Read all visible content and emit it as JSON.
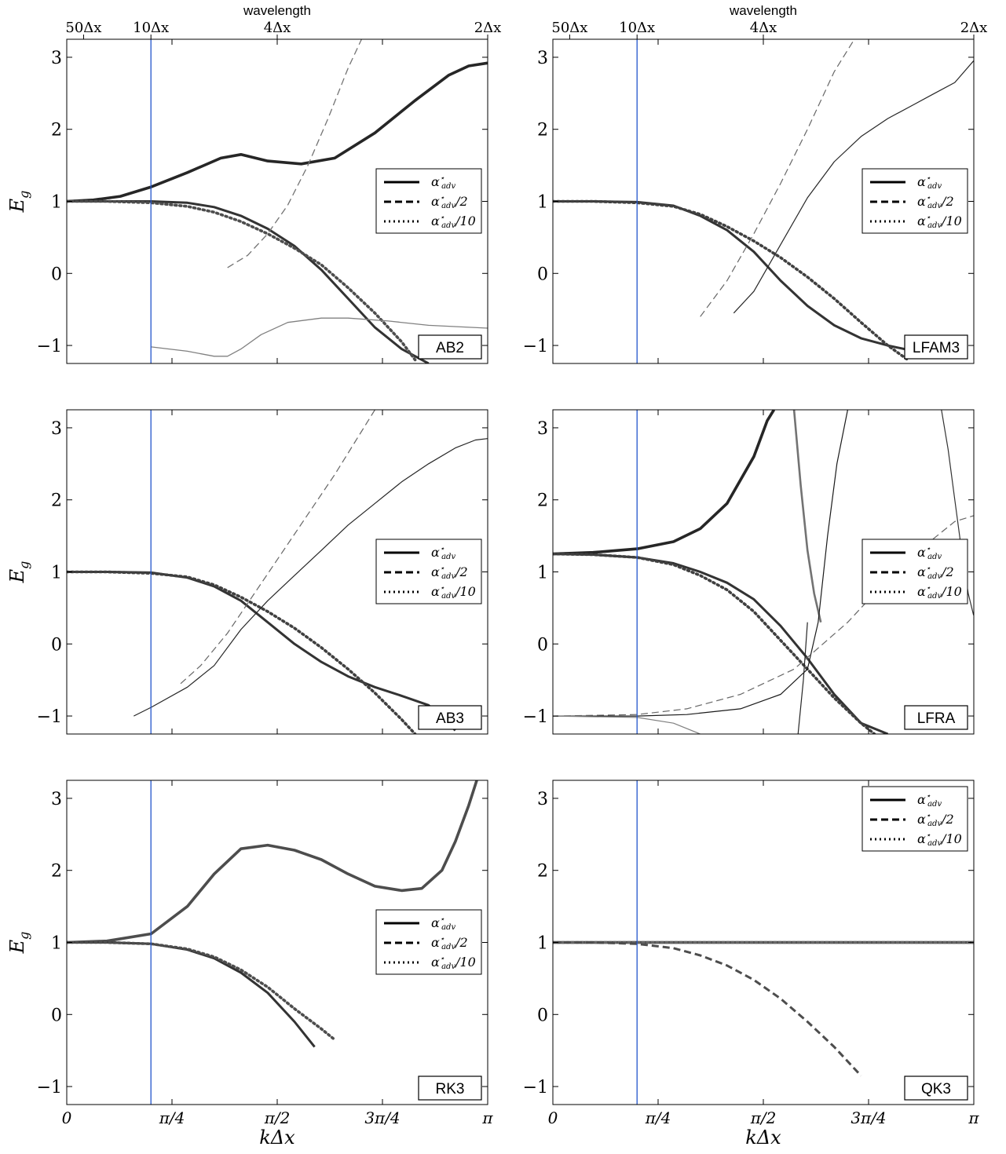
{
  "figure": {
    "top_axis_title": "wavelength",
    "top_ticks": [
      {
        "label": "50Δx",
        "x": 0.06283
      },
      {
        "label": "10Δx",
        "x": 0.31416
      },
      {
        "label": "4Δx",
        "x": 0.7854
      },
      {
        "label": "2Δx",
        "x": 1.5708
      }
    ],
    "xlabel": "kΔx",
    "ylabel": "E",
    "ylabel_sub": "g",
    "x_ticks": [
      {
        "label": "0",
        "x": 0
      },
      {
        "label": "π/4",
        "x": 0.3927
      },
      {
        "label": "π/2",
        "x": 0.7854
      },
      {
        "label": "3π/4",
        "x": 1.1781
      },
      {
        "label": "π",
        "x": 1.5708
      }
    ],
    "legend": [
      {
        "label": "α*adv",
        "main": "α",
        "sup": "⋆",
        "sub": "adv",
        "tail": "",
        "style": "solid"
      },
      {
        "label": "α*adv/2",
        "main": "α",
        "sup": "⋆",
        "sub": "adv",
        "tail": "/2",
        "style": "dashed"
      },
      {
        "label": "α*adv/10",
        "main": "α",
        "sup": "⋆",
        "sub": "adv",
        "tail": "/10",
        "style": "dotted"
      }
    ],
    "reference_line_color": "#2255cc"
  },
  "chart_data": [
    {
      "type": "line",
      "name": "AB2",
      "x_range": [
        0,
        3.1416
      ],
      "ylim": [
        -1.25,
        3.25
      ],
      "y_ticks": [
        -1,
        0,
        1,
        2,
        3
      ],
      "vline_x": 0.6283,
      "legend_position": "center-right",
      "series": [
        {
          "style": "solid",
          "width": 3.6,
          "shade": 0.15,
          "x": [
            0,
            0.2,
            0.4,
            0.63,
            0.9,
            1.15,
            1.3,
            1.5,
            1.75,
            2.0,
            2.3,
            2.6,
            2.85,
            3.0,
            3.14
          ],
          "y": [
            1,
            1.02,
            1.07,
            1.2,
            1.4,
            1.6,
            1.65,
            1.56,
            1.52,
            1.6,
            1.95,
            2.4,
            2.75,
            2.88,
            2.92
          ]
        },
        {
          "style": "solid",
          "width": 3.0,
          "shade": 0.2,
          "x": [
            0,
            0.3,
            0.63,
            0.9,
            1.1,
            1.3,
            1.5,
            1.7,
            1.9,
            2.1,
            2.3,
            2.5,
            2.7
          ],
          "y": [
            1,
            1,
            1,
            0.98,
            0.92,
            0.8,
            0.62,
            0.38,
            0.05,
            -0.35,
            -0.75,
            -1.05,
            -1.25
          ]
        },
        {
          "style": "dotted",
          "width": 3.6,
          "shade": 0.3,
          "x": [
            0,
            0.3,
            0.63,
            0.9,
            1.1,
            1.3,
            1.5,
            1.7,
            1.9,
            2.1,
            2.3,
            2.5,
            2.6
          ],
          "y": [
            1,
            1,
            0.98,
            0.93,
            0.85,
            0.72,
            0.55,
            0.35,
            0.12,
            -0.2,
            -0.55,
            -0.95,
            -1.2
          ]
        },
        {
          "style": "dashed",
          "width": 1.3,
          "shade": 0.45,
          "x": [
            1.2,
            1.35,
            1.5,
            1.65,
            1.8,
            1.95,
            2.1,
            2.2
          ],
          "y": [
            0.08,
            0.25,
            0.55,
            0.95,
            1.5,
            2.15,
            2.85,
            3.25
          ]
        },
        {
          "style": "solid",
          "width": 1.3,
          "shade": 0.5,
          "x": [
            0.63,
            0.9,
            1.1,
            1.2,
            1.3,
            1.45,
            1.65,
            1.9,
            2.1,
            2.4,
            2.7,
            3.14
          ],
          "y": [
            -1.02,
            -1.08,
            -1.15,
            -1.15,
            -1.05,
            -0.85,
            -0.68,
            -0.62,
            -0.62,
            -0.66,
            -0.72,
            -0.76
          ]
        }
      ]
    },
    {
      "type": "line",
      "name": "LFAM3",
      "x_range": [
        0,
        3.1416
      ],
      "ylim": [
        -1.25,
        3.25
      ],
      "y_ticks": [
        -1,
        0,
        1,
        2,
        3
      ],
      "vline_x": 0.6283,
      "legend_position": "center-right",
      "series": [
        {
          "style": "solid",
          "width": 3.0,
          "shade": 0.2,
          "x": [
            0,
            0.3,
            0.63,
            0.9,
            1.1,
            1.3,
            1.5,
            1.7,
            1.9,
            2.1,
            2.3,
            2.5,
            2.7
          ],
          "y": [
            1,
            1,
            0.99,
            0.94,
            0.8,
            0.6,
            0.3,
            -0.1,
            -0.45,
            -0.72,
            -0.9,
            -1.0,
            -1.08
          ]
        },
        {
          "style": "dotted",
          "width": 3.6,
          "shade": 0.25,
          "x": [
            0,
            0.3,
            0.63,
            0.9,
            1.1,
            1.3,
            1.5,
            1.7,
            1.9,
            2.1,
            2.3,
            2.5,
            2.65
          ],
          "y": [
            1,
            1,
            0.98,
            0.93,
            0.82,
            0.65,
            0.45,
            0.22,
            -0.05,
            -0.35,
            -0.68,
            -1.0,
            -1.2
          ]
        },
        {
          "style": "solid",
          "width": 1.2,
          "shade": 0.15,
          "x": [
            1.35,
            1.5,
            1.7,
            1.9,
            2.1,
            2.3,
            2.5,
            2.7,
            2.85,
            3.0,
            3.14
          ],
          "y": [
            -0.55,
            -0.25,
            0.4,
            1.05,
            1.55,
            1.9,
            2.15,
            2.35,
            2.5,
            2.65,
            2.95
          ]
        },
        {
          "style": "dashed",
          "width": 1.2,
          "shade": 0.4,
          "x": [
            1.1,
            1.3,
            1.5,
            1.7,
            1.9,
            2.1,
            2.25
          ],
          "y": [
            -0.6,
            -0.1,
            0.55,
            1.25,
            2.0,
            2.8,
            3.25
          ]
        }
      ]
    },
    {
      "type": "line",
      "name": "AB3",
      "x_range": [
        0,
        3.1416
      ],
      "ylim": [
        -1.25,
        3.25
      ],
      "y_ticks": [
        -1,
        0,
        1,
        2,
        3
      ],
      "vline_x": 0.6283,
      "legend_position": "center-right",
      "series": [
        {
          "style": "solid",
          "width": 3.0,
          "shade": 0.2,
          "x": [
            0,
            0.3,
            0.63,
            0.9,
            1.1,
            1.3,
            1.5,
            1.7,
            1.9,
            2.1,
            2.3,
            2.5,
            2.7,
            2.9
          ],
          "y": [
            1,
            1,
            0.99,
            0.92,
            0.8,
            0.6,
            0.3,
            0,
            -0.25,
            -0.45,
            -0.6,
            -0.72,
            -0.85,
            -1.2
          ]
        },
        {
          "style": "dotted",
          "width": 3.6,
          "shade": 0.25,
          "x": [
            0,
            0.3,
            0.63,
            0.9,
            1.1,
            1.3,
            1.5,
            1.7,
            1.9,
            2.1,
            2.3,
            2.5,
            2.6
          ],
          "y": [
            1,
            1,
            0.98,
            0.93,
            0.82,
            0.65,
            0.45,
            0.22,
            -0.05,
            -0.35,
            -0.68,
            -1.05,
            -1.25
          ]
        },
        {
          "style": "solid",
          "width": 1.2,
          "shade": 0.15,
          "x": [
            0.5,
            0.63,
            0.9,
            1.1,
            1.3,
            1.5,
            1.7,
            1.9,
            2.1,
            2.3,
            2.5,
            2.7,
            2.9,
            3.05,
            3.14
          ],
          "y": [
            -1.0,
            -0.88,
            -0.6,
            -0.3,
            0.2,
            0.6,
            0.95,
            1.3,
            1.65,
            1.95,
            2.25,
            2.5,
            2.72,
            2.83,
            2.85
          ]
        },
        {
          "style": "dashed",
          "width": 1.2,
          "shade": 0.4,
          "x": [
            0.85,
            1.0,
            1.2,
            1.4,
            1.6,
            1.8,
            2.0,
            2.2,
            2.3
          ],
          "y": [
            -0.55,
            -0.3,
            0.15,
            0.7,
            1.25,
            1.8,
            2.35,
            2.95,
            3.25
          ]
        }
      ]
    },
    {
      "type": "line",
      "name": "LFRA",
      "x_range": [
        0,
        3.1416
      ],
      "ylim": [
        -1.25,
        3.25
      ],
      "y_ticks": [
        -1,
        0,
        1,
        2,
        3
      ],
      "vline_x": 0.6283,
      "legend_position": "center-right",
      "series": [
        {
          "style": "solid",
          "width": 3.6,
          "shade": 0.15,
          "x": [
            0,
            0.3,
            0.63,
            0.9,
            1.1,
            1.3,
            1.5,
            1.6,
            1.65
          ],
          "y": [
            1.25,
            1.27,
            1.32,
            1.42,
            1.6,
            1.95,
            2.6,
            3.1,
            3.25
          ]
        },
        {
          "style": "solid",
          "width": 3.0,
          "shade": 0.2,
          "x": [
            0,
            0.3,
            0.63,
            0.9,
            1.1,
            1.3,
            1.5,
            1.7,
            1.9,
            2.1,
            2.3,
            2.5
          ],
          "y": [
            1.25,
            1.24,
            1.2,
            1.12,
            1.0,
            0.85,
            0.62,
            0.25,
            -0.2,
            -0.7,
            -1.1,
            -1.25
          ]
        },
        {
          "style": "dotted",
          "width": 3.6,
          "shade": 0.25,
          "x": [
            0,
            0.3,
            0.63,
            0.9,
            1.1,
            1.3,
            1.5,
            1.7,
            1.9,
            2.1,
            2.3,
            2.4
          ],
          "y": [
            1.25,
            1.24,
            1.2,
            1.1,
            0.95,
            0.75,
            0.45,
            0.05,
            -0.35,
            -0.75,
            -1.1,
            -1.25
          ]
        },
        {
          "style": "solid",
          "width": 2.6,
          "shade": 0.45,
          "x": [
            1.8,
            1.85,
            1.9,
            1.95,
            2.0
          ],
          "y": [
            3.25,
            2.2,
            1.3,
            0.7,
            0.3
          ]
        },
        {
          "style": "solid",
          "width": 1.2,
          "shade": 0.1,
          "x": [
            0,
            0.63,
            1.0,
            1.4,
            1.7,
            1.9,
            1.98,
            2.05,
            2.12,
            2.2
          ],
          "y": [
            -1,
            -1,
            -0.98,
            -0.9,
            -0.7,
            -0.35,
            0.3,
            1.5,
            2.5,
            3.25
          ]
        },
        {
          "style": "solid",
          "width": 1.2,
          "shade": 0.15,
          "x": [
            1.83,
            1.87,
            1.9
          ],
          "y": [
            -1.25,
            -0.5,
            0.3
          ]
        },
        {
          "style": "solid",
          "width": 1.2,
          "shade": 0.2,
          "x": [
            2.9,
            2.95,
            3.0,
            3.05,
            3.1,
            3.14
          ],
          "y": [
            3.25,
            2.7,
            2.0,
            1.3,
            0.7,
            0.4
          ]
        },
        {
          "style": "dashed",
          "width": 1.2,
          "shade": 0.4,
          "x": [
            0,
            0.63,
            1.0,
            1.4,
            1.8,
            2.2,
            2.6,
            3.0,
            3.14
          ],
          "y": [
            -1,
            -0.98,
            -0.9,
            -0.7,
            -0.35,
            0.3,
            1.1,
            1.7,
            1.78
          ]
        },
        {
          "style": "solid",
          "width": 1.2,
          "shade": 0.5,
          "x": [
            0,
            0.63,
            0.9,
            1.1
          ],
          "y": [
            -1,
            -1.02,
            -1.1,
            -1.25
          ]
        }
      ]
    },
    {
      "type": "line",
      "name": "RK3",
      "x_range": [
        0,
        3.1416
      ],
      "ylim": [
        -1.25,
        3.25
      ],
      "y_ticks": [
        -1,
        0,
        1,
        2,
        3
      ],
      "vline_x": 0.6283,
      "legend_position": "center-right",
      "series": [
        {
          "style": "solid",
          "width": 3.6,
          "shade": 0.3,
          "x": [
            0,
            0.3,
            0.63,
            0.9,
            1.1,
            1.3,
            1.5,
            1.7,
            1.9,
            2.1,
            2.3,
            2.5,
            2.65,
            2.8,
            2.9,
            3.0,
            3.06
          ],
          "y": [
            1,
            1.02,
            1.12,
            1.5,
            1.95,
            2.3,
            2.35,
            2.28,
            2.15,
            1.95,
            1.78,
            1.72,
            1.75,
            2.0,
            2.4,
            2.9,
            3.25
          ]
        },
        {
          "style": "solid",
          "width": 3.0,
          "shade": 0.2,
          "x": [
            0,
            0.3,
            0.63,
            0.9,
            1.1,
            1.3,
            1.5,
            1.7,
            1.85
          ],
          "y": [
            1,
            1,
            0.98,
            0.9,
            0.78,
            0.58,
            0.3,
            -0.1,
            -0.45
          ]
        },
        {
          "style": "dotted",
          "width": 3.6,
          "shade": 0.3,
          "x": [
            0,
            0.3,
            0.63,
            0.9,
            1.1,
            1.3,
            1.5,
            1.7,
            1.9,
            2.0
          ],
          "y": [
            1,
            1,
            0.98,
            0.91,
            0.8,
            0.62,
            0.38,
            0.08,
            -0.2,
            -0.35
          ]
        }
      ]
    },
    {
      "type": "line",
      "name": "QK3",
      "x_range": [
        0,
        3.1416
      ],
      "ylim": [
        -1.25,
        3.25
      ],
      "y_ticks": [
        -1,
        0,
        1,
        2,
        3
      ],
      "vline_x": 0.6283,
      "legend_position": "top-right",
      "series": [
        {
          "style": "solid",
          "width": 3.6,
          "shade": 0.2,
          "x": [
            0,
            0.5,
            1.0,
            1.5,
            2.0,
            2.5,
            3.14
          ],
          "y": [
            1,
            1,
            1,
            1,
            1,
            1,
            1
          ]
        },
        {
          "style": "dotted",
          "width": 3.6,
          "shade": 0.4,
          "x": [
            0,
            0.5,
            1.0,
            1.5,
            2.0,
            2.5,
            3.14
          ],
          "y": [
            1,
            1,
            1,
            1,
            1,
            1,
            1
          ]
        },
        {
          "style": "dashed",
          "width": 3.0,
          "shade": 0.3,
          "x": [
            0,
            0.3,
            0.63,
            0.9,
            1.1,
            1.3,
            1.5,
            1.7,
            1.9,
            2.1,
            2.3
          ],
          "y": [
            1,
            1,
            0.98,
            0.92,
            0.82,
            0.68,
            0.48,
            0.22,
            -0.1,
            -0.45,
            -0.85
          ]
        }
      ]
    }
  ]
}
